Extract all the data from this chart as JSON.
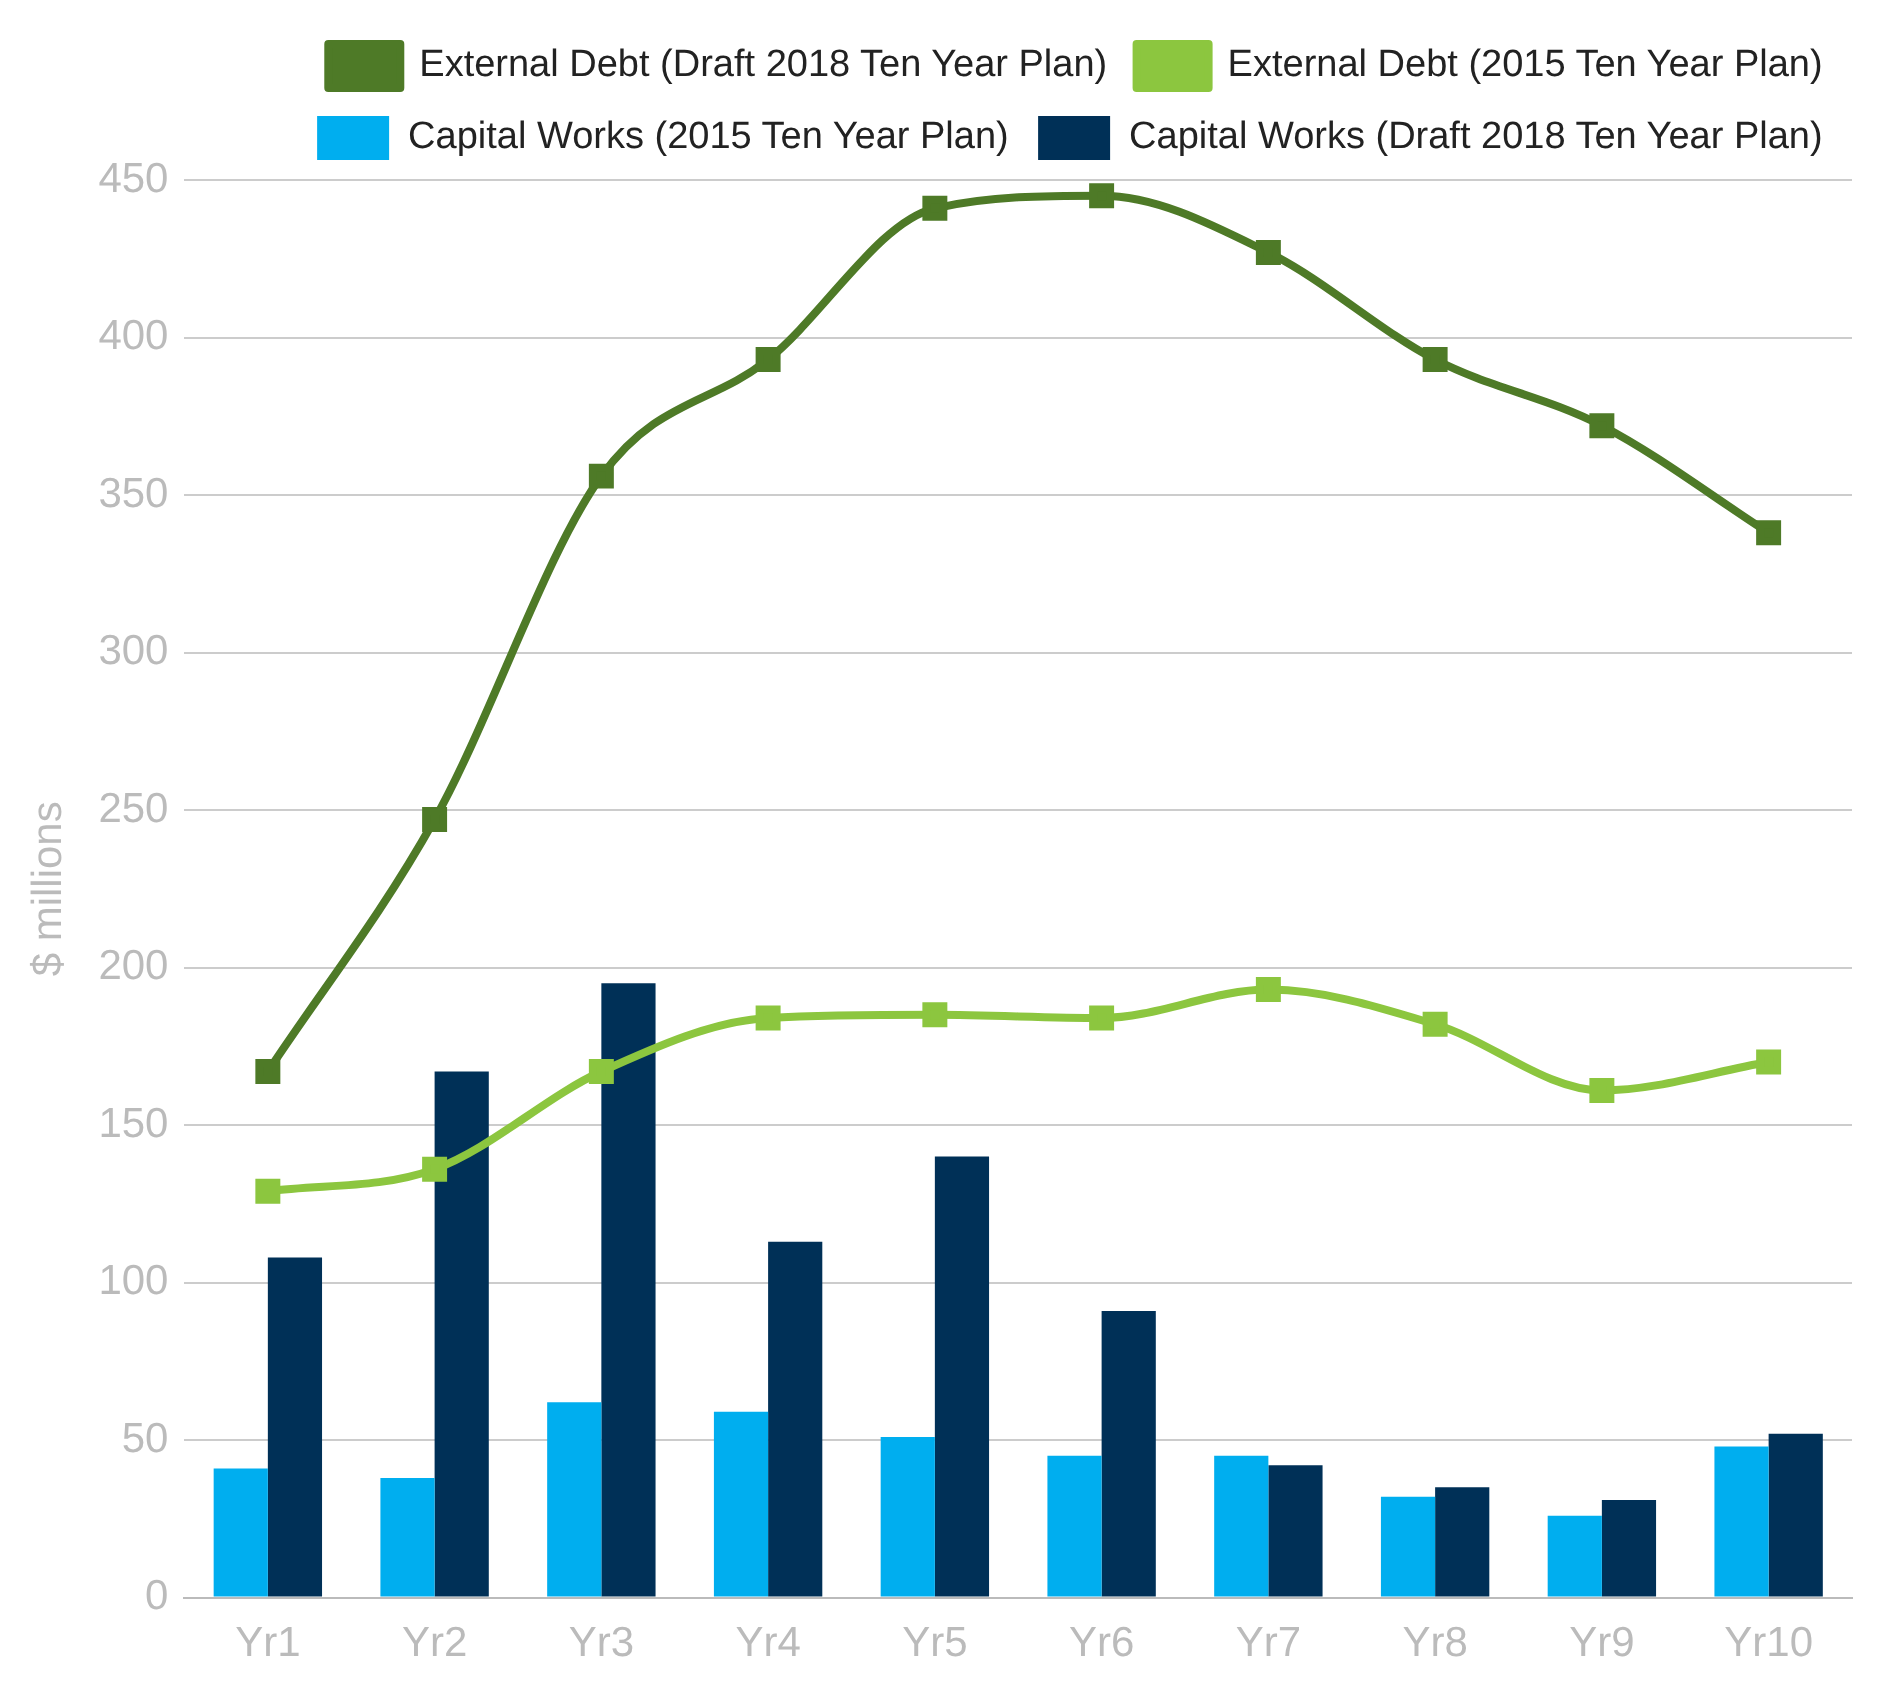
{
  "chart_data": {
    "type": "bar",
    "ylabel": "$ millions",
    "categories": [
      "Yr1",
      "Yr2",
      "Yr3",
      "Yr4",
      "Yr5",
      "Yr6",
      "Yr7",
      "Yr8",
      "Yr9",
      "Yr10"
    ],
    "series": [
      {
        "name": "External Debt (Draft 2018 Ten Year Plan)",
        "type": "line",
        "color": "#4e7a27",
        "values": [
          167,
          247,
          356,
          393,
          441,
          445,
          427,
          393,
          372,
          338
        ]
      },
      {
        "name": "External Debt (2015 Ten Year Plan)",
        "type": "line",
        "color": "#8cc63f",
        "values": [
          129,
          136,
          167,
          184,
          185,
          184,
          193,
          182,
          161,
          170
        ]
      },
      {
        "name": "Capital Works (2015 Ten Year Plan)",
        "color": "#00aeef",
        "values": [
          41,
          38,
          62,
          59,
          51,
          45,
          45,
          32,
          26,
          48
        ]
      },
      {
        "name": "Capital Works (Draft 2018 Ten Year Plan)",
        "color": "#003057",
        "values": [
          108,
          167,
          195,
          113,
          140,
          91,
          42,
          35,
          31,
          52
        ]
      }
    ],
    "ylim": [
      0,
      450
    ],
    "yticks": [
      0,
      50,
      100,
      150,
      200,
      250,
      300,
      350,
      400,
      450
    ],
    "grid": "y",
    "legend": "top",
    "marker": "square",
    "line_style": "solid"
  }
}
